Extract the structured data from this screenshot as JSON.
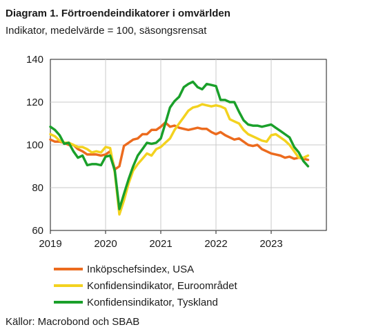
{
  "header": {
    "title": "Diagram 1. Förtroendeindikatorer i omvärlden",
    "subtitle": "Indikator, medelvärde = 100, säsongsrensat"
  },
  "source": "Källor: Macrobond och SBAB",
  "chart_data": {
    "type": "line",
    "title": "Diagram 1. Förtroendeindikatorer i omvärlden",
    "subtitle": "Indikator, medelvärde = 100, säsongsrensat",
    "xlabel": "",
    "ylabel": "",
    "xlim": [
      2019,
      2024
    ],
    "ylim": [
      60,
      140
    ],
    "x_ticks": [
      2019,
      2020,
      2021,
      2022,
      2023
    ],
    "x_tick_labels": [
      "2019",
      "2020",
      "2021",
      "2022",
      "2023"
    ],
    "y_ticks": [
      60,
      80,
      100,
      120,
      140
    ],
    "y_tick_labels": [
      "60",
      "80",
      "100",
      "120",
      "140"
    ],
    "grid": true,
    "legend_position": "bottom",
    "series": [
      {
        "name": "Inköpschefsindex, USA",
        "color": "#ec6b1e",
        "x": [
          2019.0,
          2019.083,
          2019.167,
          2019.25,
          2019.333,
          2019.417,
          2019.5,
          2019.583,
          2019.667,
          2019.75,
          2019.833,
          2019.917,
          2020.0,
          2020.083,
          2020.167,
          2020.25,
          2020.333,
          2020.417,
          2020.5,
          2020.583,
          2020.667,
          2020.75,
          2020.833,
          2020.917,
          2021.0,
          2021.083,
          2021.167,
          2021.25,
          2021.333,
          2021.417,
          2021.5,
          2021.583,
          2021.667,
          2021.75,
          2021.833,
          2021.917,
          2022.0,
          2022.083,
          2022.167,
          2022.25,
          2022.333,
          2022.417,
          2022.5,
          2022.583,
          2022.667,
          2022.75,
          2022.833,
          2022.917,
          2023.0,
          2023.083,
          2023.167,
          2023.25,
          2023.333,
          2023.417,
          2023.5,
          2023.583,
          2023.667
        ],
        "values": [
          102.5,
          101.5,
          101.5,
          101,
          100,
          100,
          98,
          97,
          95.5,
          95.5,
          95.5,
          95,
          95.5,
          97,
          88.5,
          90,
          99.5,
          101,
          102.5,
          103,
          105,
          105,
          107,
          107,
          108.5,
          110.5,
          108.5,
          109,
          108,
          107.5,
          107,
          107.5,
          108,
          107.5,
          107.5,
          106,
          105,
          106,
          104.5,
          103.5,
          102.5,
          103,
          101.5,
          100,
          99.5,
          100,
          98,
          97,
          96,
          95.5,
          95,
          94,
          94.5,
          93.5,
          94,
          93.5,
          93
        ]
      },
      {
        "name": "Konfidensindikator, Euroområdet",
        "color": "#f3d21f",
        "x": [
          2019.0,
          2019.083,
          2019.167,
          2019.25,
          2019.333,
          2019.417,
          2019.5,
          2019.583,
          2019.667,
          2019.75,
          2019.833,
          2019.917,
          2020.0,
          2020.083,
          2020.167,
          2020.25,
          2020.333,
          2020.417,
          2020.5,
          2020.583,
          2020.667,
          2020.75,
          2020.833,
          2020.917,
          2021.0,
          2021.083,
          2021.167,
          2021.25,
          2021.333,
          2021.417,
          2021.5,
          2021.583,
          2021.667,
          2021.75,
          2021.833,
          2021.917,
          2022.0,
          2022.083,
          2022.167,
          2022.25,
          2022.333,
          2022.417,
          2022.5,
          2022.583,
          2022.667,
          2022.75,
          2022.833,
          2022.917,
          2023.0,
          2023.083,
          2023.167,
          2023.25,
          2023.333,
          2023.417,
          2023.5,
          2023.583,
          2023.667
        ],
        "values": [
          105,
          104,
          102,
          101,
          101,
          100,
          99,
          99,
          98,
          96.5,
          97,
          96.5,
          99,
          98.5,
          87,
          67.5,
          74,
          82,
          88,
          91,
          93.5,
          96,
          95,
          98,
          99,
          101,
          103,
          107,
          110,
          113,
          116,
          117.5,
          118,
          119,
          118.5,
          118,
          118.5,
          118,
          117,
          112,
          111,
          110,
          107,
          105,
          104,
          103,
          102,
          101.5,
          104.5,
          105,
          103.5,
          102,
          100,
          97,
          94,
          94,
          95
        ]
      },
      {
        "name": "Konfidensindikator, Tyskland",
        "color": "#1aa02a",
        "x": [
          2019.0,
          2019.083,
          2019.167,
          2019.25,
          2019.333,
          2019.417,
          2019.5,
          2019.583,
          2019.667,
          2019.75,
          2019.833,
          2019.917,
          2020.0,
          2020.083,
          2020.167,
          2020.25,
          2020.333,
          2020.417,
          2020.5,
          2020.583,
          2020.667,
          2020.75,
          2020.833,
          2020.917,
          2021.0,
          2021.083,
          2021.167,
          2021.25,
          2021.333,
          2021.417,
          2021.5,
          2021.583,
          2021.667,
          2021.75,
          2021.833,
          2021.917,
          2022.0,
          2022.083,
          2022.167,
          2022.25,
          2022.333,
          2022.417,
          2022.5,
          2022.583,
          2022.667,
          2022.75,
          2022.833,
          2022.917,
          2023.0,
          2023.083,
          2023.167,
          2023.25,
          2023.333,
          2023.417,
          2023.5,
          2023.583,
          2023.667
        ],
        "values": [
          108.5,
          107,
          104.5,
          100.5,
          101,
          97,
          94,
          95,
          90.5,
          91,
          91,
          90.5,
          94.5,
          95,
          88,
          70,
          77,
          84,
          90,
          95,
          98,
          101,
          100.5,
          101,
          103,
          110,
          117.5,
          120.5,
          122.5,
          127,
          128.5,
          129.5,
          127,
          126,
          128.5,
          128,
          127.5,
          121,
          121,
          120,
          120,
          115.5,
          111.5,
          109.5,
          109,
          109,
          108.5,
          109,
          109.5,
          108,
          106.5,
          105,
          103.5,
          99,
          96.5,
          92.5,
          90
        ]
      }
    ]
  }
}
